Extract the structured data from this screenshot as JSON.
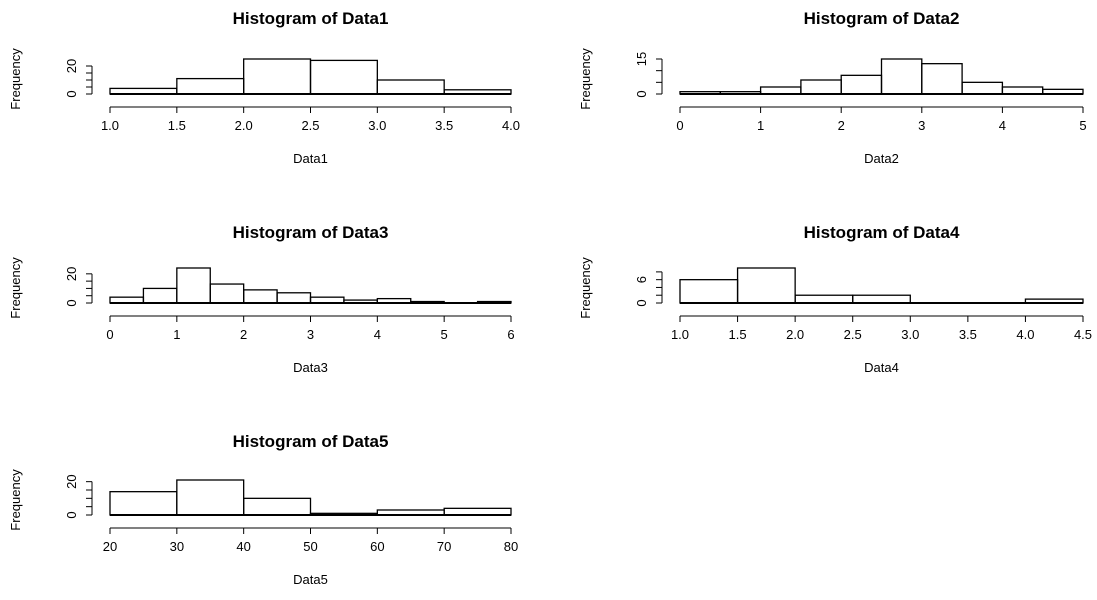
{
  "chart_data": [
    {
      "type": "bar",
      "title": "Histogram of Data1",
      "xlabel": "Data1",
      "ylabel": "Frequency",
      "bin_edges": [
        1.0,
        1.5,
        2.0,
        2.5,
        3.0,
        3.5,
        4.0
      ],
      "values": [
        4,
        11,
        25,
        24,
        10,
        3
      ],
      "xlim": [
        1.0,
        4.0
      ],
      "ylim": [
        0,
        25
      ],
      "x_ticks": [
        "1.0",
        "1.5",
        "2.0",
        "2.5",
        "3.0",
        "3.5",
        "4.0"
      ],
      "y_ticks": [
        0,
        5,
        10,
        15,
        20
      ],
      "y_tick_labels": [
        "0",
        "",
        "",
        "",
        "20"
      ]
    },
    {
      "type": "bar",
      "title": "Histogram of Data2",
      "xlabel": "Data2",
      "ylabel": "Frequency",
      "bin_edges": [
        0,
        0.5,
        1.0,
        1.5,
        2.0,
        2.5,
        3.0,
        3.5,
        4.0,
        4.5,
        5.0
      ],
      "values": [
        1,
        1,
        3,
        6,
        8,
        15,
        13,
        5,
        3,
        2
      ],
      "xlim": [
        0,
        5
      ],
      "ylim": [
        0,
        15
      ],
      "x_ticks": [
        "0",
        "1",
        "2",
        "3",
        "4",
        "5"
      ],
      "y_ticks": [
        0,
        5,
        10,
        15
      ],
      "y_tick_labels": [
        "0",
        "",
        "",
        "15"
      ]
    },
    {
      "type": "bar",
      "title": "Histogram of Data3",
      "xlabel": "Data3",
      "ylabel": "Frequency",
      "bin_edges": [
        0,
        0.5,
        1.0,
        1.5,
        2.0,
        2.5,
        3.0,
        3.5,
        4.0,
        4.5,
        5.0,
        5.5,
        6.0
      ],
      "values": [
        4,
        10,
        24,
        13,
        9,
        7,
        4,
        2,
        3,
        1,
        0,
        1
      ],
      "xlim": [
        0,
        6
      ],
      "ylim": [
        0,
        24
      ],
      "x_ticks": [
        "0",
        "1",
        "2",
        "3",
        "4",
        "5",
        "6"
      ],
      "y_ticks": [
        0,
        5,
        10,
        15,
        20
      ],
      "y_tick_labels": [
        "0",
        "",
        "",
        "",
        "20"
      ]
    },
    {
      "type": "bar",
      "title": "Histogram of Data4",
      "xlabel": "Data4",
      "ylabel": "Frequency",
      "bin_edges": [
        1.0,
        1.5,
        2.0,
        2.5,
        3.0,
        3.5,
        4.0,
        4.5
      ],
      "values": [
        6,
        9,
        2,
        2,
        0,
        0,
        1
      ],
      "xlim": [
        1.0,
        4.5
      ],
      "ylim": [
        0,
        9
      ],
      "x_ticks": [
        "1.0",
        "1.5",
        "2.0",
        "2.5",
        "3.0",
        "3.5",
        "4.0",
        "4.5"
      ],
      "y_ticks": [
        0,
        2,
        4,
        6,
        8
      ],
      "y_tick_labels": [
        "0",
        "",
        "",
        "6",
        ""
      ]
    },
    {
      "type": "bar",
      "title": "Histogram of Data5",
      "xlabel": "Data5",
      "ylabel": "Frequency",
      "bin_edges": [
        20,
        30,
        40,
        50,
        60,
        70,
        80
      ],
      "values": [
        14,
        21,
        10,
        1,
        3,
        4
      ],
      "xlim": [
        20,
        80
      ],
      "ylim": [
        0,
        21
      ],
      "x_ticks": [
        "20",
        "30",
        "40",
        "50",
        "60",
        "70",
        "80"
      ],
      "y_ticks": [
        0,
        5,
        10,
        15,
        20
      ],
      "y_tick_labels": [
        "0",
        "",
        "",
        "",
        "20"
      ]
    }
  ]
}
